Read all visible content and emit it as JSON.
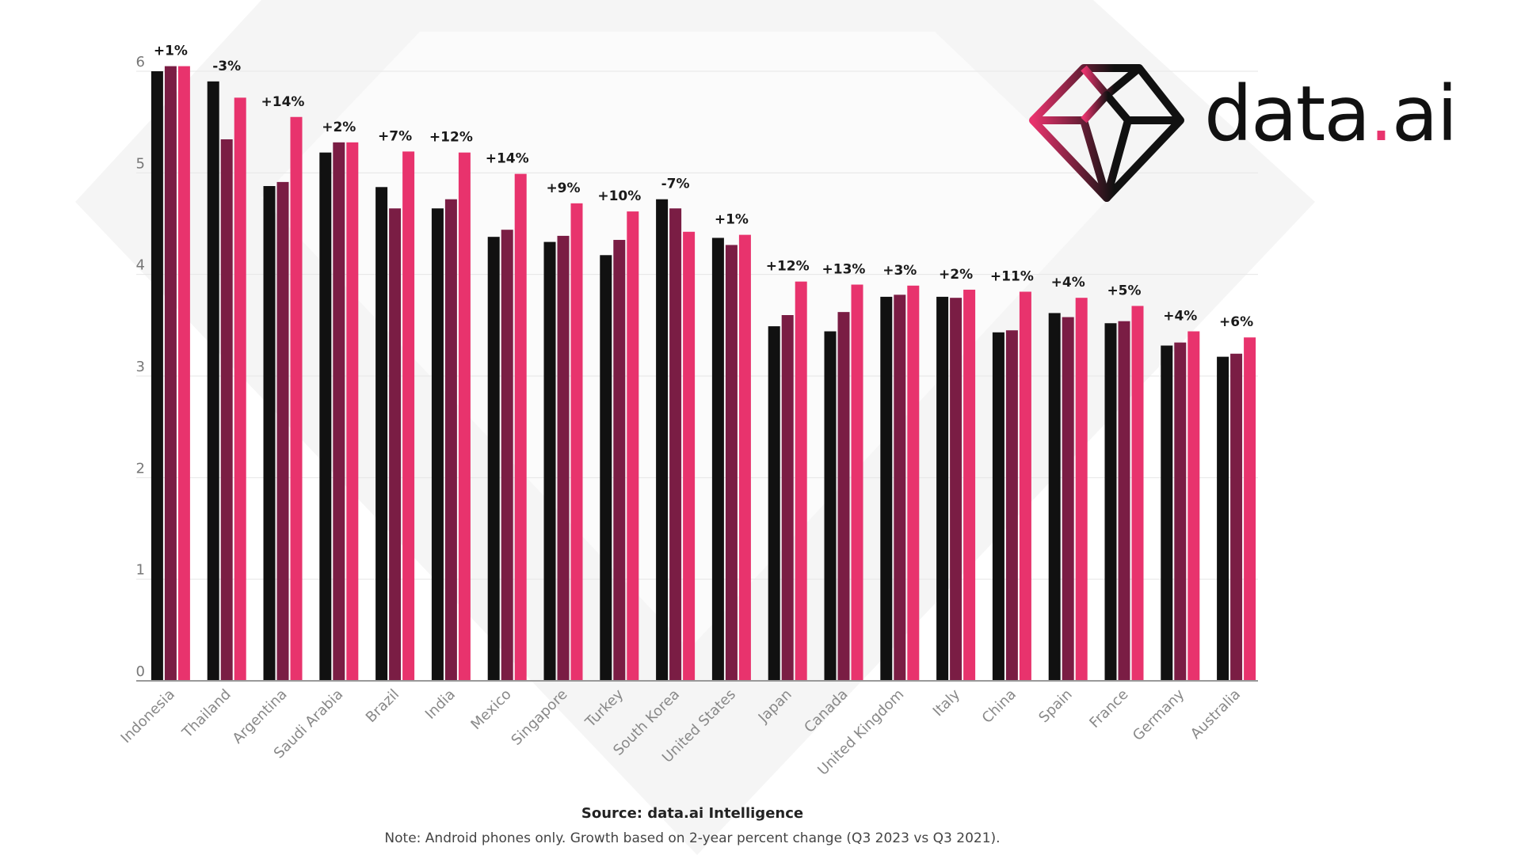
{
  "brand": {
    "name_main": "data",
    "name_dot": ".",
    "name_end": "ai",
    "accent": "#e8336d"
  },
  "footer": {
    "source": "Source: data.ai Intelligence",
    "note": "Note: Android phones only. Growth based on 2-year percent change (Q3 2023 vs Q3 2021)."
  },
  "chart_data": {
    "type": "bar",
    "title": "",
    "xlabel": "",
    "ylabel": "",
    "ylim": [
      0,
      6
    ],
    "yticks": [
      0,
      1,
      2,
      3,
      4,
      5,
      6
    ],
    "grid": true,
    "categories": [
      "Indonesia",
      "Thailand",
      "Argentina",
      "Saudi Arabia",
      "Brazil",
      "India",
      "Mexico",
      "Singapore",
      "Turkey",
      "South Korea",
      "United States",
      "Japan",
      "Canada",
      "United Kingdom",
      "Italy",
      "China",
      "Spain",
      "France",
      "Germany",
      "Australia"
    ],
    "series": [
      {
        "color": "#111111",
        "values": [
          6.0,
          5.9,
          4.87,
          5.2,
          4.86,
          4.65,
          4.37,
          4.32,
          4.19,
          4.74,
          4.36,
          3.49,
          3.44,
          3.78,
          3.78,
          3.43,
          3.62,
          3.52,
          3.3,
          3.19
        ]
      },
      {
        "color": "#7a1d44",
        "values": [
          6.05,
          5.33,
          4.91,
          5.3,
          4.65,
          4.74,
          4.44,
          4.38,
          4.34,
          4.65,
          4.29,
          3.6,
          3.63,
          3.8,
          3.77,
          3.45,
          3.58,
          3.54,
          3.33,
          3.22
        ]
      },
      {
        "color": "#e8336d",
        "values": [
          6.05,
          5.74,
          5.55,
          5.3,
          5.21,
          5.2,
          4.99,
          4.7,
          4.62,
          4.42,
          4.39,
          3.93,
          3.9,
          3.89,
          3.85,
          3.83,
          3.77,
          3.69,
          3.44,
          3.38
        ]
      }
    ],
    "growth_labels": [
      "+1%",
      "-3%",
      "+14%",
      "+2%",
      "+7%",
      "+12%",
      "+14%",
      "+9%",
      "+10%",
      "-7%",
      "+1%",
      "+12%",
      "+13%",
      "+3%",
      "+2%",
      "+11%",
      "+4%",
      "+5%",
      "+4%",
      "+6%"
    ]
  }
}
